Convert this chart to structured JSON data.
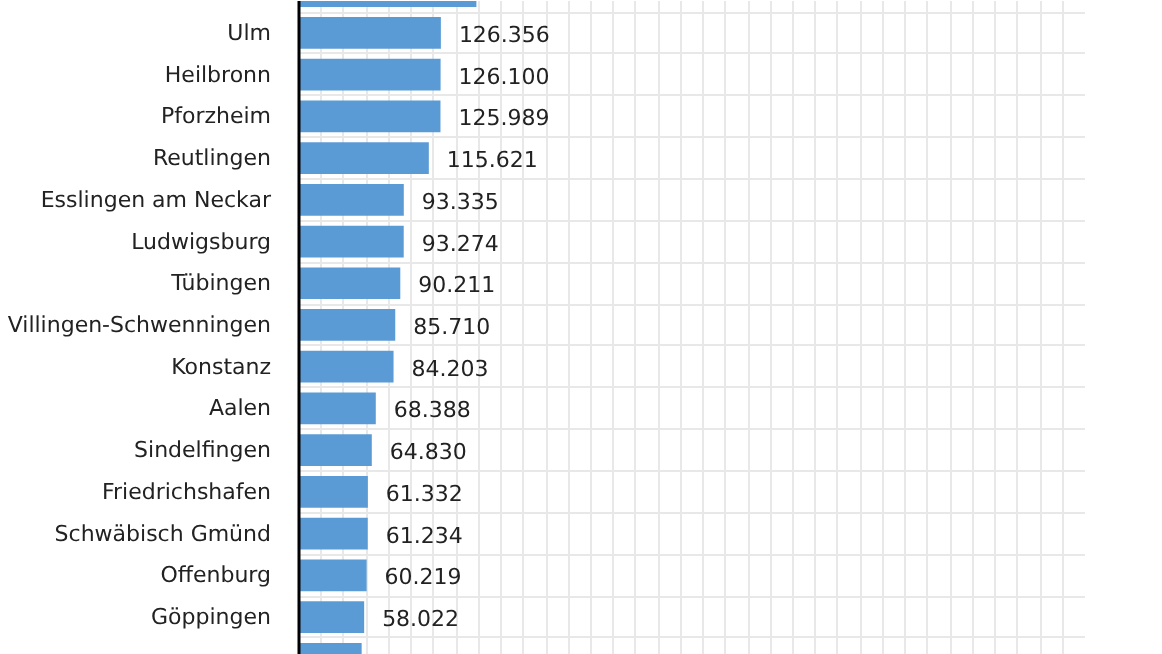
{
  "chart_data": {
    "type": "bar",
    "orientation": "horizontal",
    "categories": [
      null,
      "Ulm",
      "Heilbronn",
      "Pforzheim",
      "Reutlingen",
      "Esslingen am Neckar",
      "Ludwigsburg",
      "Tübingen",
      "Villingen-Schwenningen",
      "Konstanz",
      "Aalen",
      "Sindelfingen",
      "Friedrichshafen",
      "Schwäbisch Gmünd",
      "Offenburg",
      "Göppingen",
      null
    ],
    "values": [
      158000,
      126356,
      126100,
      125989,
      115621,
      93335,
      93274,
      90211,
      85710,
      84203,
      68388,
      64830,
      61332,
      61234,
      60219,
      58022,
      55800
    ],
    "value_labels": [
      null,
      "126.356",
      "126.100",
      "125.989",
      "115.621",
      "93.335",
      "93.274",
      "90.211",
      "85.710",
      "84.203",
      "68.388",
      "64.830",
      "61.332",
      "61.234",
      "60.219",
      "58.022",
      null
    ],
    "color": "#5b9bd5",
    "xlim": [
      0,
      700000
    ],
    "xticks": [
      {
        "value": 0,
        "label": null
      },
      {
        "value": 20000,
        "label": null
      },
      {
        "value": 40000,
        "label": null
      },
      {
        "value": 60000,
        "label": null
      },
      {
        "value": 80000,
        "label": null
      },
      {
        "value": 100000,
        "label": null
      },
      {
        "value": 120000,
        "label": null
      },
      {
        "value": 140000,
        "label": null
      },
      {
        "value": 160000,
        "label": null
      },
      {
        "value": 180000,
        "label": null
      },
      {
        "value": 200000,
        "label": null
      },
      {
        "value": 220000,
        "label": null
      },
      {
        "value": 240000,
        "label": null
      },
      {
        "value": 260000,
        "label": null
      },
      {
        "value": 280000,
        "label": null
      },
      {
        "value": 300000,
        "label": null
      },
      {
        "value": 320000,
        "label": null
      },
      {
        "value": 340000,
        "label": null
      },
      {
        "value": 360000,
        "label": null
      },
      {
        "value": 380000,
        "label": null
      },
      {
        "value": 400000,
        "label": null
      },
      {
        "value": 420000,
        "label": null
      },
      {
        "value": 440000,
        "label": null
      },
      {
        "value": 460000,
        "label": null
      },
      {
        "value": 480000,
        "label": null
      },
      {
        "value": 500000,
        "label": null
      },
      {
        "value": 520000,
        "label": null
      },
      {
        "value": 540000,
        "label": null
      },
      {
        "value": 560000,
        "label": null
      },
      {
        "value": 580000,
        "label": null
      },
      {
        "value": 600000,
        "label": null
      },
      {
        "value": 620000,
        "label": null
      },
      {
        "value": 640000,
        "label": null
      },
      {
        "value": 660000,
        "label": null
      },
      {
        "value": 680000,
        "label": null
      }
    ],
    "grid": true,
    "tick_labels": "y"
  }
}
